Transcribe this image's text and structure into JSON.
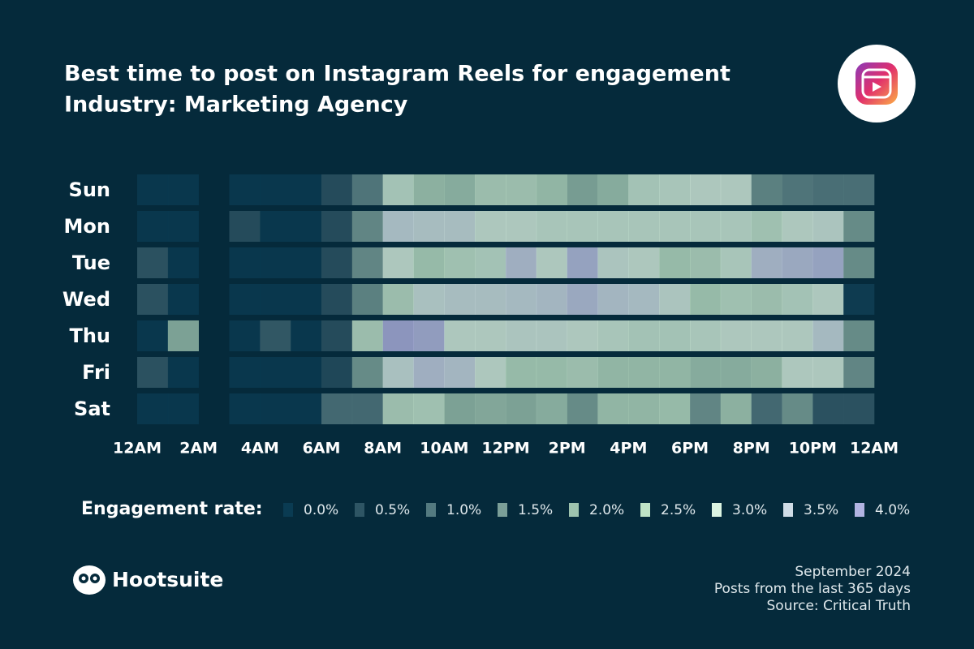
{
  "chart_data": {
    "type": "heatmap",
    "title": "Best time to post on Instagram Reels for engagement",
    "subtitle": "Industry: Marketing Agency",
    "y_categories": [
      "Sun",
      "Mon",
      "Tue",
      "Wed",
      "Thu",
      "Fri",
      "Sat"
    ],
    "x": [
      0,
      1,
      2,
      3,
      4,
      5,
      6,
      7,
      8,
      9,
      10,
      11,
      12,
      13,
      14,
      15,
      16,
      17,
      18,
      19,
      20,
      21,
      22,
      23
    ],
    "xlim": [
      0,
      24
    ],
    "xticks": [
      {
        "value": 0,
        "label": "12AM"
      },
      {
        "value": 2,
        "label": "2AM"
      },
      {
        "value": 4,
        "label": "4AM"
      },
      {
        "value": 6,
        "label": "6AM"
      },
      {
        "value": 8,
        "label": "8AM"
      },
      {
        "value": 10,
        "label": "10AM"
      },
      {
        "value": 12,
        "label": "12PM"
      },
      {
        "value": 14,
        "label": "2PM"
      },
      {
        "value": 16,
        "label": "4PM"
      },
      {
        "value": 18,
        "label": "6PM"
      },
      {
        "value": 20,
        "label": "8PM"
      },
      {
        "value": 22,
        "label": "10PM"
      },
      {
        "value": 24,
        "label": "12AM"
      }
    ],
    "values": [
      [
        0,
        0,
        null,
        0,
        0,
        0,
        0.5,
        1.2,
        2.8,
        2.3,
        2.2,
        2.6,
        2.6,
        2.4,
        1.9,
        2.2,
        2.8,
        2.9,
        3.0,
        3.0,
        1.4,
        1.2,
        1.1,
        1.1
      ],
      [
        0,
        0,
        null,
        0.5,
        0,
        0,
        0.5,
        1.5,
        3.4,
        3.3,
        3.3,
        3.0,
        3.0,
        2.9,
        2.9,
        2.9,
        2.9,
        2.9,
        2.9,
        2.9,
        2.7,
        3.0,
        3.1,
        1.6
      ],
      [
        0.6,
        0,
        null,
        0,
        0,
        0,
        0.5,
        1.5,
        3.0,
        2.5,
        2.7,
        2.8,
        3.6,
        3.0,
        3.8,
        3.1,
        3.0,
        2.5,
        2.6,
        2.9,
        3.6,
        3.7,
        3.8,
        1.6
      ],
      [
        0.6,
        0,
        null,
        0,
        0,
        0,
        0.5,
        1.4,
        2.6,
        3.2,
        3.3,
        3.3,
        3.4,
        3.5,
        3.7,
        3.5,
        3.4,
        3.1,
        2.5,
        2.7,
        2.6,
        2.8,
        3.0,
        0.1
      ],
      [
        0,
        2.0,
        null,
        0,
        0.7,
        0,
        0.5,
        2.6,
        4.0,
        3.9,
        3.0,
        3.0,
        3.1,
        3.1,
        3.0,
        2.9,
        2.8,
        2.8,
        2.9,
        3.0,
        3.0,
        3.0,
        3.4,
        1.6
      ],
      [
        0.6,
        0,
        null,
        0,
        0,
        0,
        0.4,
        1.6,
        3.2,
        3.6,
        3.5,
        3.0,
        2.5,
        2.5,
        2.6,
        2.4,
        2.4,
        2.4,
        2.2,
        2.2,
        2.3,
        3.0,
        3.0,
        1.5
      ],
      [
        0,
        0,
        null,
        0,
        0,
        0,
        1.0,
        1.0,
        2.6,
        2.7,
        2.0,
        2.1,
        2.0,
        2.2,
        1.6,
        2.4,
        2.4,
        2.5,
        1.5,
        2.3,
        1.0,
        1.6,
        0.6,
        0.6
      ]
    ],
    "legend_title": "Engagement rate:",
    "colorscale": [
      {
        "value": 0.0,
        "label": "0.0%",
        "color": "#0a3b52"
      },
      {
        "value": 0.5,
        "label": "0.5%",
        "color": "#2e5564"
      },
      {
        "value": 1.0,
        "label": "1.0%",
        "color": "#547a80"
      },
      {
        "value": 1.5,
        "label": "1.5%",
        "color": "#7b9f98"
      },
      {
        "value": 2.0,
        "label": "2.0%",
        "color": "#9ec3ae"
      },
      {
        "value": 2.5,
        "label": "2.5%",
        "color": "#bfe3c6"
      },
      {
        "value": 3.0,
        "label": "3.0%",
        "color": "#dcf4e2"
      },
      {
        "value": 3.5,
        "label": "3.5%",
        "color": "#d0dce6"
      },
      {
        "value": 4.0,
        "label": "4.0%",
        "color": "#b2b4e2"
      }
    ]
  },
  "footer": {
    "brand": "Hootsuite",
    "lines": [
      "September 2024",
      "Posts from the last 365 days",
      "Source: Critical Truth"
    ]
  }
}
